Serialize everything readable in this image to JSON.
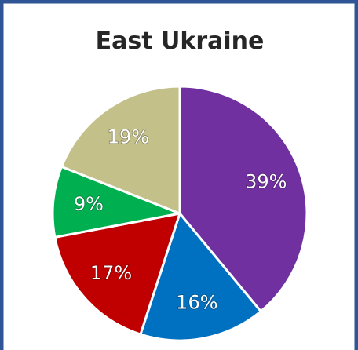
{
  "chart_data": {
    "type": "pie",
    "title": "East Ukraine",
    "values": [
      39,
      16,
      17,
      9,
      19
    ],
    "value_labels": [
      "39%",
      "16%",
      "17%",
      "9%",
      "19%"
    ],
    "colors": [
      "#7030a0",
      "#0070c0",
      "#c00000",
      "#00b050",
      "#c4c08a"
    ]
  }
}
